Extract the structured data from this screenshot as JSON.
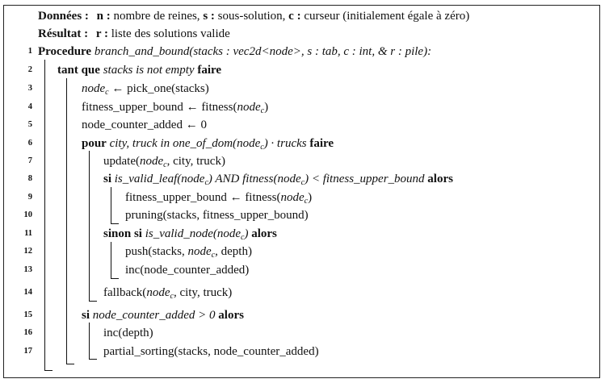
{
  "header": {
    "donnees_label": "Données :",
    "donnees_text": "nombre de reines,",
    "donnees_n": "n :",
    "donnees_s": "s :",
    "donnees_s_text": "sous-solution,",
    "donnees_c": "c :",
    "donnees_c_text": "curseur (initialement égale à zéro)",
    "resultat_label": "Résultat :",
    "resultat_r": "r :",
    "resultat_text": "liste des solutions valide"
  },
  "lines": [
    {
      "num": "1"
    },
    {
      "num": "2"
    },
    {
      "num": "3"
    },
    {
      "num": "4"
    },
    {
      "num": "5"
    },
    {
      "num": "6"
    },
    {
      "num": "7"
    },
    {
      "num": "8"
    },
    {
      "num": "9"
    },
    {
      "num": "10"
    },
    {
      "num": "11"
    },
    {
      "num": "12"
    },
    {
      "num": "13"
    },
    {
      "num": "14"
    },
    {
      "num": "15"
    },
    {
      "num": "16"
    },
    {
      "num": "17"
    }
  ],
  "kw": {
    "procedure": "Procedure",
    "tant_que": "tant que",
    "faire": "faire",
    "pour": "pour",
    "si": "si",
    "alors": "alors",
    "sinon_si": "sinon si"
  },
  "code": {
    "l1": "branch_and_bound(stacks : vec2d<node>, s : tab, c : int, & r : pile):",
    "l2_cond": "stacks is not empty",
    "l3_a": "node",
    "l3_sub": "c",
    "l3_b": " ← pick_one(stacks)",
    "l4_a": "fitness_upper_bound ← fitness(",
    "l4_node": "node",
    "l4_sub": "c",
    "l4_b": ")",
    "l5": "node_counter_added ← 0",
    "l6_a": "city, truck in one_of_dom(",
    "l6_node": "node",
    "l6_sub": "c",
    "l6_b": ") · trucks",
    "l7_a": "update(",
    "l7_node": "node",
    "l7_sub": "c",
    "l7_b": ", city, truck)",
    "l8_a": "is_valid_leaf(",
    "l8_node": "node",
    "l8_sub": "c",
    "l8_b": ") AND fitness(",
    "l8_node2": "node",
    "l8_sub2": "c",
    "l8_c": ") < fitness_upper_bound",
    "l9_a": "fitness_upper_bound ← fitness(",
    "l9_node": "node",
    "l9_sub": "c",
    "l9_b": ")",
    "l10": "pruning(stacks, fitness_upper_bound)",
    "l11_a": "is_valid_node(",
    "l11_node": "node",
    "l11_sub": "c",
    "l11_b": ")",
    "l12_a": "push(stacks, ",
    "l12_node": "node",
    "l12_sub": "c",
    "l12_b": ", depth)",
    "l13": "inc(node_counter_added)",
    "l14_a": "fallback(",
    "l14_node": "node",
    "l14_sub": "c",
    "l14_b": ", city, truck)",
    "l15_cond": "node_counter_added > 0",
    "l16": "inc(depth)",
    "l17": "partial_sorting(stacks, node_counter_added)"
  }
}
